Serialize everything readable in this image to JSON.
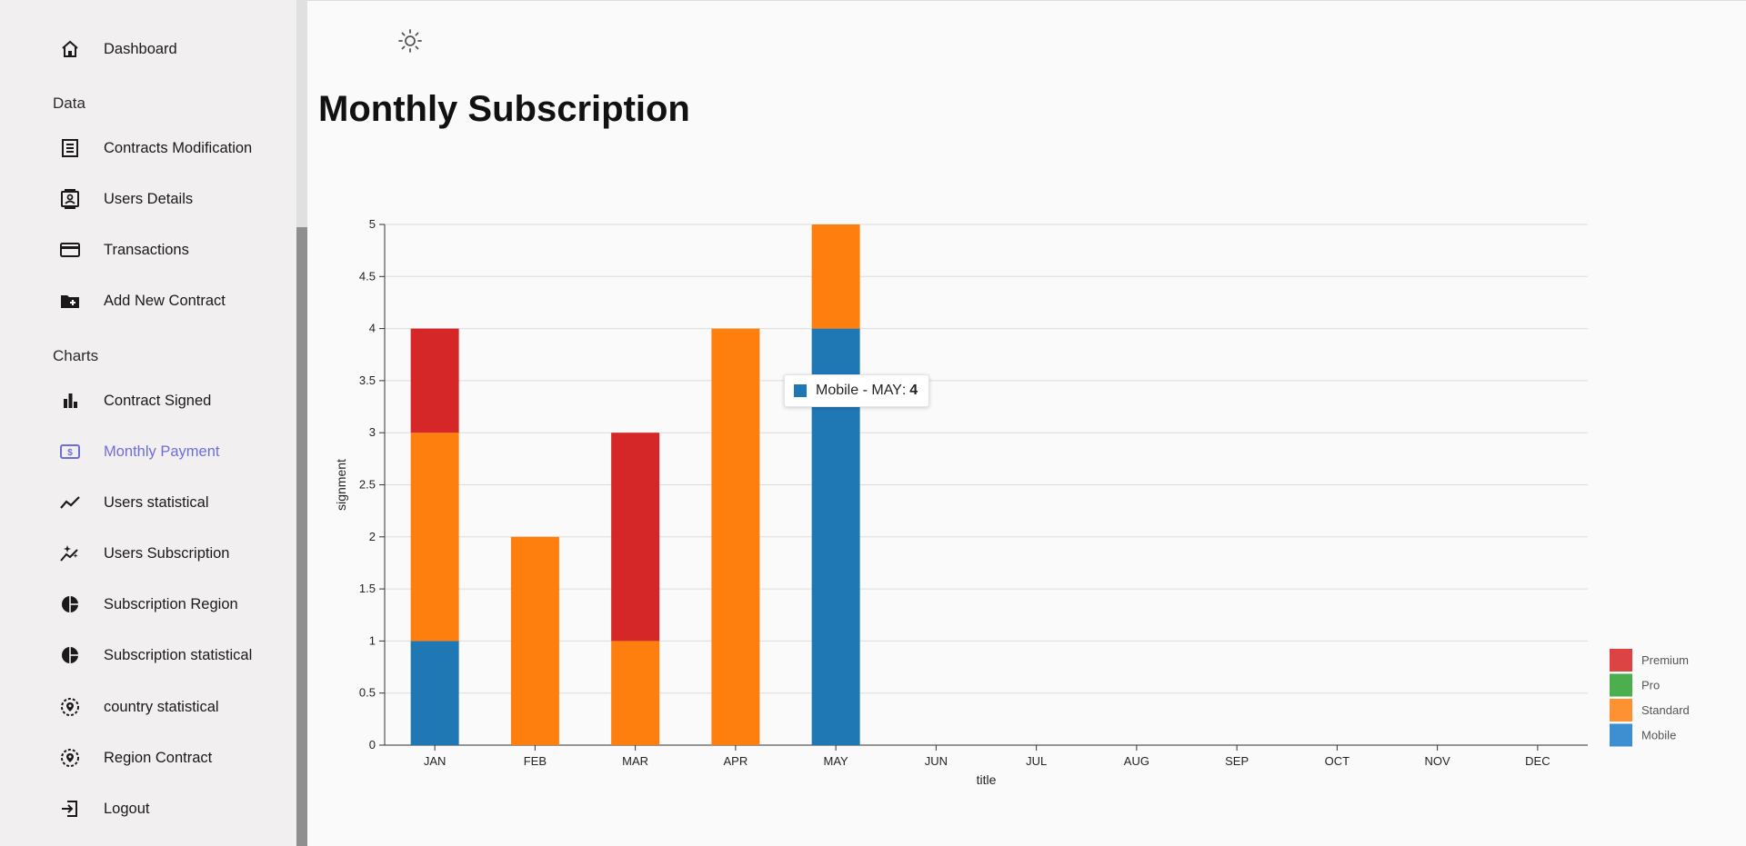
{
  "sidebar": {
    "top_items": [
      {
        "label": "Dashboard",
        "icon": "home-icon"
      }
    ],
    "sections": [
      {
        "title": "Data",
        "items": [
          {
            "label": "Contracts Modification",
            "icon": "receipt-icon"
          },
          {
            "label": "Users Details",
            "icon": "contact-card-icon"
          },
          {
            "label": "Transactions",
            "icon": "credit-card-icon"
          },
          {
            "label": "Add New Contract",
            "icon": "folder-add-icon"
          }
        ]
      },
      {
        "title": "Charts",
        "items": [
          {
            "label": "Contract Signed",
            "icon": "bar-chart-icon"
          },
          {
            "label": "Monthly Payment",
            "icon": "dollar-card-icon",
            "active": true
          },
          {
            "label": "Users statistical",
            "icon": "line-chart-icon"
          },
          {
            "label": "Users Subscription",
            "icon": "sparkle-chart-icon"
          },
          {
            "label": "Subscription Region",
            "icon": "pie-chart-icon"
          },
          {
            "label": "Subscription statistical",
            "icon": "pie-chart-icon"
          },
          {
            "label": "country statistical",
            "icon": "location-icon"
          },
          {
            "label": "Region Contract",
            "icon": "location-icon"
          },
          {
            "label": "Logout",
            "icon": "logout-icon"
          }
        ]
      }
    ],
    "active_color": "#6d6fd8"
  },
  "header": {
    "theme_icon": "sun-icon"
  },
  "page": {
    "title": "Monthly Subscription"
  },
  "tooltip": {
    "series": "Mobile",
    "category": "MAY",
    "value": "4",
    "color": "#1f77b4"
  },
  "chart_data": {
    "type": "bar",
    "stacked": true,
    "categories": [
      "JAN",
      "FEB",
      "MAR",
      "APR",
      "MAY",
      "JUN",
      "JUL",
      "AUG",
      "SEP",
      "OCT",
      "NOV",
      "DEC"
    ],
    "series": [
      {
        "name": "Mobile",
        "color": "#1f77b4",
        "legend_color": "#3d8fd1",
        "values": [
          1,
          0,
          0,
          0,
          4,
          0,
          0,
          0,
          0,
          0,
          0,
          0
        ]
      },
      {
        "name": "Standard",
        "color": "#ff7f0e",
        "legend_color": "#fe9233",
        "values": [
          2,
          2,
          1,
          4,
          1,
          0,
          0,
          0,
          0,
          0,
          0,
          0
        ]
      },
      {
        "name": "Pro",
        "color": "#2ca02c",
        "legend_color": "#4cae4c",
        "values": [
          0,
          0,
          0,
          0,
          0,
          0,
          0,
          0,
          0,
          0,
          0,
          0
        ]
      },
      {
        "name": "Premium",
        "color": "#d62728",
        "legend_color": "#dc4343",
        "values": [
          1,
          0,
          2,
          0,
          0,
          0,
          0,
          0,
          0,
          0,
          0,
          0
        ]
      }
    ],
    "legend_order": [
      "Premium",
      "Pro",
      "Standard",
      "Mobile"
    ],
    "xlabel": "title",
    "ylabel": "signment",
    "ylim": [
      0,
      5
    ],
    "yticks": [
      "0",
      "0.5",
      "1",
      "1.5",
      "2",
      "2.5",
      "3",
      "3.5",
      "4",
      "4.5",
      "5"
    ],
    "grid": true,
    "legend_position": "bottom-right"
  }
}
